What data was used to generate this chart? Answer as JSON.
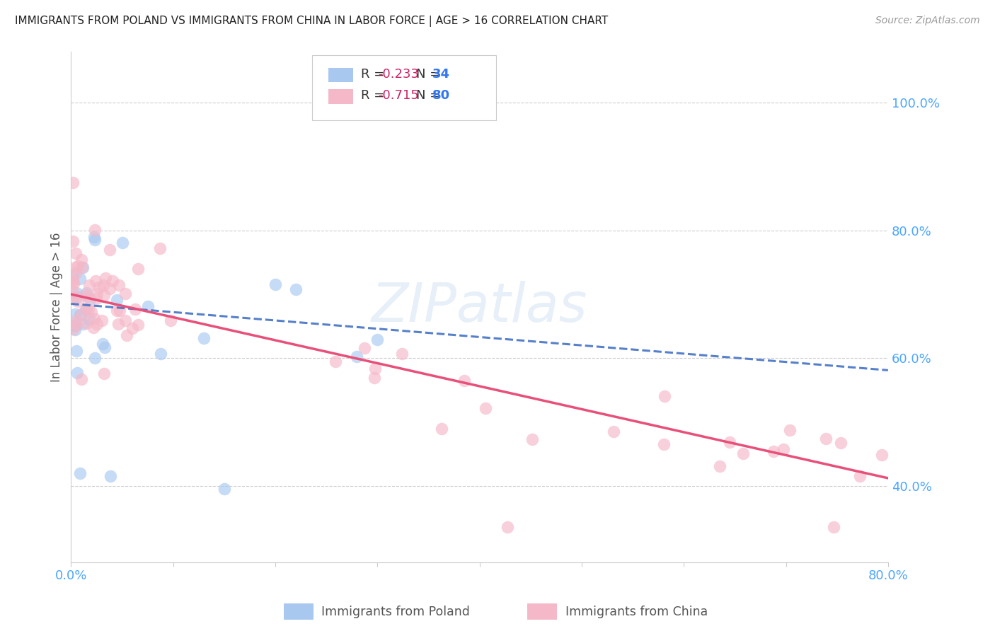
{
  "title": "IMMIGRANTS FROM POLAND VS IMMIGRANTS FROM CHINA IN LABOR FORCE | AGE > 16 CORRELATION CHART",
  "source": "Source: ZipAtlas.com",
  "ylabel": "In Labor Force | Age > 16",
  "xlim": [
    0.0,
    0.8
  ],
  "ylim": [
    0.28,
    1.08
  ],
  "poland_color": "#a8c8f0",
  "china_color": "#f5b8c8",
  "poland_line_color": "#4472c4",
  "china_line_color": "#e8507a",
  "legend_R_poland": "R = -0.233",
  "legend_N_poland": "N = 34",
  "legend_R_china": "R = -0.715",
  "legend_N_china": "N = 80",
  "watermark": "ZIPatlas",
  "background_color": "#ffffff",
  "grid_color": "#cccccc",
  "title_color": "#222222",
  "axis_label_color": "#555555",
  "right_tick_color": "#4da6ff",
  "bottom_tick_color": "#4da6ff",
  "legend_R_color": "#cc2266",
  "legend_N_color": "#3377ee",
  "poland_line_slope": -0.13,
  "poland_line_intercept": 0.685,
  "china_line_slope": -0.36,
  "china_line_intercept": 0.7,
  "scatter_size": 160,
  "scatter_alpha": 0.65
}
